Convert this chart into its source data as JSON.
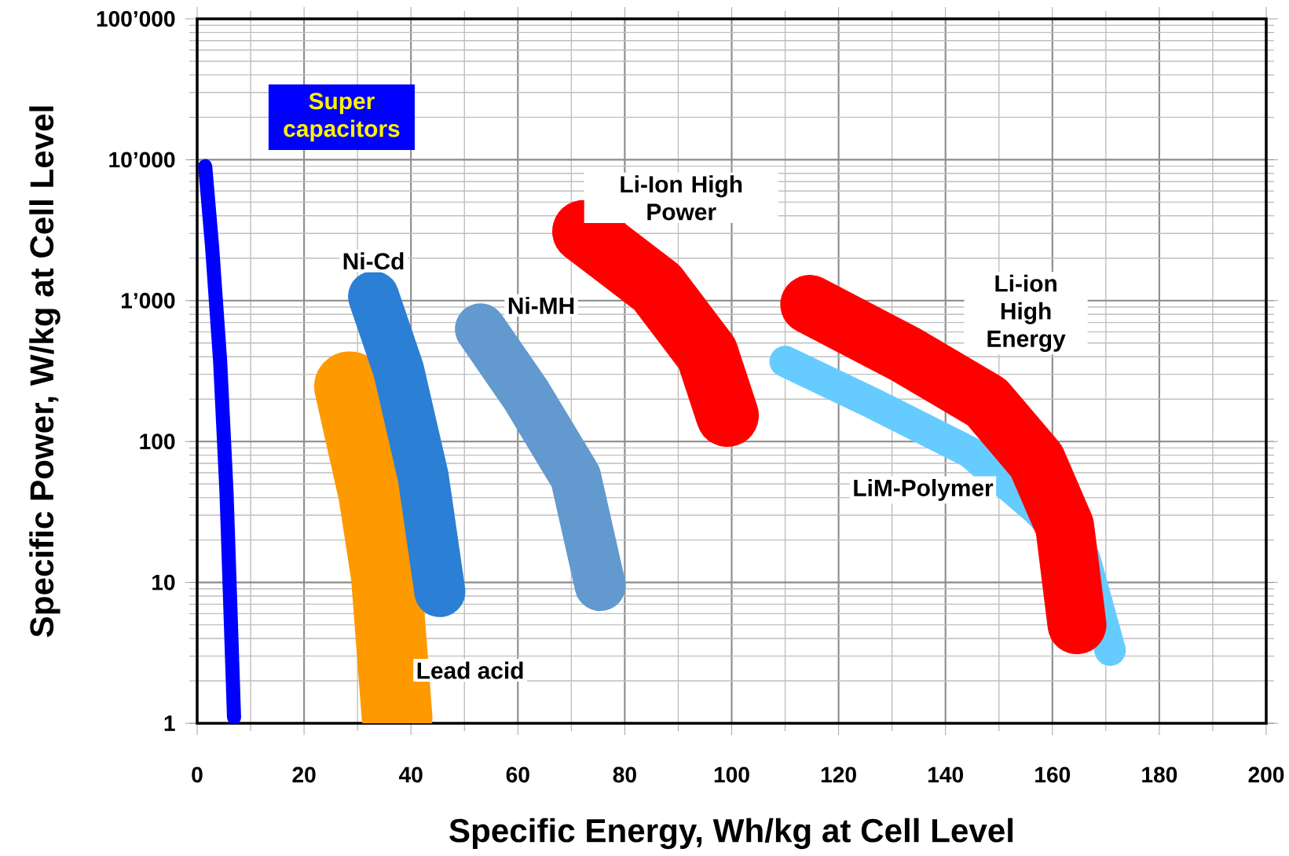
{
  "chart_data": {
    "type": "line",
    "xlabel": "Specific Energy, Wh/kg at Cell Level",
    "ylabel": "Specific Power, W/kg at Cell Level",
    "log": "y",
    "grid": true,
    "marker": "none",
    "line_style": "solid",
    "xlim": [
      0,
      200
    ],
    "xticks": [
      0,
      20,
      40,
      60,
      80,
      100,
      120,
      140,
      160,
      180,
      200
    ],
    "ylim": [
      1,
      100000
    ],
    "yticks": [
      1,
      10,
      100,
      {
        "value": 1000,
        "label": "1’000"
      },
      {
        "value": 10000,
        "label": "10’000"
      },
      {
        "value": 100000,
        "label": "100’000"
      }
    ],
    "series": [
      {
        "name": "Super capacitors",
        "color": "#0000ff",
        "x": [
          1.5,
          2.8,
          4.3,
          5.5,
          6.9
        ],
        "values": [
          9000,
          2400,
          370,
          43,
          1.1
        ]
      },
      {
        "name": "Lead acid",
        "color": "#ff9900",
        "x": [
          28.5,
          33,
          35.4,
          37.4
        ],
        "values": [
          245,
          43,
          11,
          1.1
        ]
      },
      {
        "name": "Ni-Cd",
        "color": "#2b7fd4",
        "x": [
          33,
          37.7,
          42.3,
          45.4
        ],
        "values": [
          1070,
          320,
          56,
          8.6
        ]
      },
      {
        "name": "Ni-MH",
        "color": "#6299cf",
        "x": [
          53,
          61.5,
          70.8,
          75.4
        ],
        "values": [
          630,
          215,
          56,
          9.5
        ]
      },
      {
        "name": "Li-Ion High Power",
        "color": "#ff0000",
        "x": [
          72.3,
          86,
          95.4,
          99.2
        ],
        "values": [
          3100,
          1240,
          420,
          153
        ]
      },
      {
        "name": "LiM-Polymer",
        "color": "#66ccff",
        "x": [
          110,
          126,
          144.6,
          157,
          166,
          170.8
        ],
        "values": [
          370,
          190,
          84,
          33,
          15,
          3.3
        ]
      },
      {
        "name": "Li-ion High Energy",
        "color": "#ff0000",
        "x": [
          114.6,
          132.3,
          147.7,
          157,
          162.3,
          164.6
        ],
        "values": [
          940,
          420,
          190,
          73,
          25,
          5
        ]
      }
    ]
  }
}
